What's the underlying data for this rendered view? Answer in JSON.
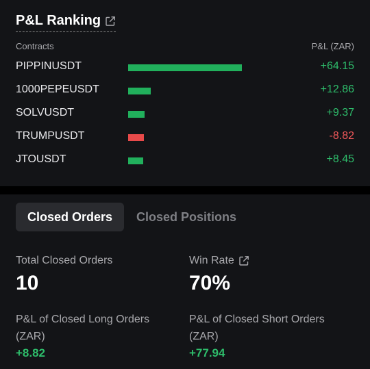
{
  "ranking": {
    "title": "P&L Ranking",
    "col_contracts": "Contracts",
    "col_pnl": "P&L (ZAR)",
    "rows": [
      {
        "name": "PIPPINUSDT",
        "value": "+64.15",
        "amount": 64.15,
        "positive": true
      },
      {
        "name": "1000PEPEUSDT",
        "value": "+12.86",
        "amount": 12.86,
        "positive": true
      },
      {
        "name": "SOLVUSDT",
        "value": "+9.37",
        "amount": 9.37,
        "positive": true
      },
      {
        "name": "TRUMPUSDT",
        "value": "-8.82",
        "amount": -8.82,
        "positive": false
      },
      {
        "name": "JTOUSDT",
        "value": "+8.45",
        "amount": 8.45,
        "positive": true
      }
    ]
  },
  "tabs": {
    "closed_orders": "Closed Orders",
    "closed_positions": "Closed Positions"
  },
  "stats": {
    "total_closed_orders_label": "Total Closed Orders",
    "total_closed_orders_value": "10",
    "win_rate_label": "Win Rate",
    "win_rate_value": "70%",
    "long_pnl_label_line1": "P&L of Closed Long Orders",
    "long_pnl_label_line2": "(ZAR)",
    "long_pnl_value": "+8.82",
    "short_pnl_label_line1": "P&L of Closed Short Orders",
    "short_pnl_label_line2": "(ZAR)",
    "short_pnl_value": "+77.94"
  },
  "colors": {
    "positive": "#21b05c",
    "negative": "#e84a4a",
    "positive_text": "#2ebd6b",
    "negative_text": "#f0585a"
  }
}
